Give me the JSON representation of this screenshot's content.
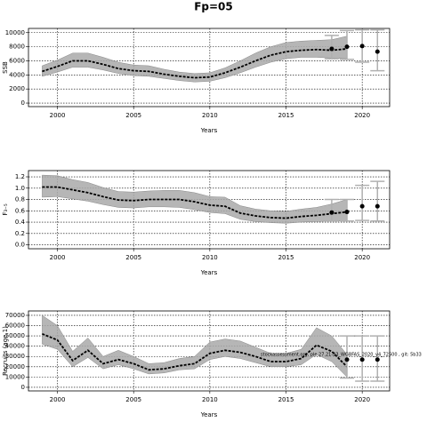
{
  "title": "Fp=05",
  "chart_data": [
    {
      "type": "line",
      "ylabel": "SSB",
      "xlabel": "Years",
      "x": [
        1999,
        2000,
        2001,
        2002,
        2003,
        2004,
        2005,
        2006,
        2007,
        2008,
        2009,
        2010,
        2011,
        2012,
        2013,
        2014,
        2015,
        2016,
        2017,
        2018,
        2019
      ],
      "values": [
        4500,
        5200,
        6000,
        6000,
        5500,
        4900,
        4600,
        4500,
        4100,
        3800,
        3600,
        3700,
        4300,
        5100,
        6000,
        6800,
        7300,
        7500,
        7600,
        7500,
        7700
      ],
      "lower": [
        3800,
        4400,
        5100,
        5100,
        4700,
        4200,
        3900,
        3800,
        3500,
        3200,
        3000,
        3100,
        3600,
        4300,
        5100,
        5800,
        6300,
        6500,
        6500,
        6400,
        6300
      ],
      "upper": [
        5300,
        6100,
        7100,
        7100,
        6500,
        5800,
        5400,
        5300,
        4800,
        4400,
        4200,
        4300,
        5000,
        6000,
        7100,
        8000,
        8600,
        8800,
        8900,
        9000,
        9500
      ],
      "forecast": {
        "x": [
          2018,
          2019,
          2020,
          2021
        ],
        "values": [
          7700,
          8000,
          8100,
          7300
        ],
        "lower": [
          6300,
          6200,
          5800,
          4600
        ],
        "upper": [
          9600,
          10300,
          10400,
          10400
        ]
      },
      "xlim": [
        1998.1,
        2021.8
      ],
      "ylim": [
        -500,
        10600
      ],
      "xticks": [
        2000,
        2005,
        2010,
        2015,
        2020
      ],
      "yticks": [
        0,
        2000,
        4000,
        6000,
        8000,
        10000
      ],
      "grid": true,
      "color": "#000000",
      "band_color": "#a9a9a9",
      "forecast_color": "#b0b0b0"
    },
    {
      "type": "line",
      "ylabel": "F₃₋₅",
      "xlabel": "Years",
      "x": [
        1999,
        2000,
        2001,
        2002,
        2003,
        2004,
        2005,
        2006,
        2007,
        2008,
        2009,
        2010,
        2011,
        2012,
        2013,
        2014,
        2015,
        2016,
        2017,
        2018,
        2019
      ],
      "values": [
        1.02,
        1.02,
        0.97,
        0.92,
        0.85,
        0.79,
        0.78,
        0.8,
        0.8,
        0.8,
        0.76,
        0.7,
        0.68,
        0.56,
        0.51,
        0.48,
        0.47,
        0.5,
        0.52,
        0.55,
        0.58
      ],
      "lower": [
        0.84,
        0.85,
        0.81,
        0.77,
        0.71,
        0.66,
        0.65,
        0.67,
        0.67,
        0.66,
        0.62,
        0.57,
        0.55,
        0.45,
        0.41,
        0.39,
        0.38,
        0.4,
        0.41,
        0.42,
        0.42
      ],
      "upper": [
        1.23,
        1.22,
        1.15,
        1.1,
        1.01,
        0.94,
        0.93,
        0.95,
        0.96,
        0.96,
        0.92,
        0.85,
        0.84,
        0.69,
        0.63,
        0.6,
        0.59,
        0.63,
        0.66,
        0.72,
        0.8
      ],
      "forecast": {
        "x": [
          2018,
          2019,
          2020,
          2021
        ],
        "values": [
          0.57,
          0.58,
          0.68,
          0.68
        ],
        "lower": [
          0.42,
          0.42,
          0.43,
          0.42
        ],
        "upper": [
          0.8,
          0.8,
          1.05,
          1.12
        ]
      },
      "xlim": [
        1998.1,
        2021.8
      ],
      "ylim": [
        -0.07,
        1.31
      ],
      "xticks": [
        2000,
        2005,
        2010,
        2015,
        2020
      ],
      "yticks": [
        {
          "value": 0,
          "label": "0.0"
        },
        0.2,
        0.4,
        0.6,
        0.8,
        {
          "value": 1,
          "label": "1.0"
        },
        1.2
      ],
      "grid": true,
      "color": "#000000",
      "band_color": "#a9a9a9",
      "forecast_color": "#b0b0b0"
    },
    {
      "type": "line",
      "ylabel": "Recruits (age 1)",
      "xlabel": "Years",
      "x": [
        1999,
        2000,
        2001,
        2002,
        2003,
        2004,
        2005,
        2006,
        2007,
        2008,
        2009,
        2010,
        2011,
        2012,
        2013,
        2014,
        2015,
        2016,
        2017,
        2018,
        2019
      ],
      "values": [
        52000,
        46000,
        26000,
        36000,
        23000,
        27000,
        23000,
        17000,
        18000,
        21000,
        23000,
        33000,
        36000,
        34000,
        30000,
        25000,
        25000,
        28000,
        41000,
        35000,
        20000
      ],
      "lower": [
        42000,
        37000,
        20000,
        29000,
        18000,
        22000,
        18000,
        13000,
        14000,
        17000,
        18000,
        27000,
        30000,
        28000,
        24000,
        20000,
        20000,
        22000,
        32000,
        25000,
        10000
      ],
      "upper": [
        70000,
        60000,
        35000,
        48000,
        30000,
        36000,
        30000,
        23000,
        24000,
        28000,
        30000,
        44000,
        47000,
        45000,
        39000,
        33000,
        33000,
        37000,
        58000,
        50000,
        32000
      ],
      "forecast": {
        "x": [
          2019,
          2020,
          2021
        ],
        "values": [
          27000,
          27000,
          27000
        ],
        "lower": [
          9000,
          6000,
          6000
        ],
        "upper": [
          50000,
          50000,
          50000
        ]
      },
      "annotation": "stockassessment.org, ple.27.21-23_WGBFAS_2020_v4_72500 , git: 5b33",
      "xlim": [
        1998.1,
        2021.8
      ],
      "ylim": [
        -3500,
        74300
      ],
      "xticks": [
        2000,
        2005,
        2010,
        2015,
        2020
      ],
      "yticks": [
        0,
        10000,
        20000,
        30000,
        40000,
        50000,
        60000,
        70000
      ],
      "grid": true,
      "color": "#000000",
      "band_color": "#a9a9a9",
      "forecast_color": "#b0b0b0"
    }
  ]
}
